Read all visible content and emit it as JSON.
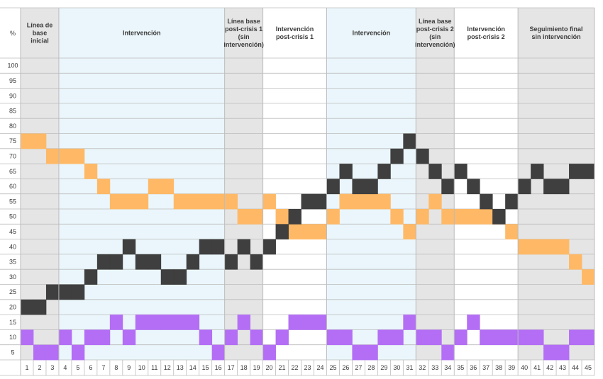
{
  "chart_data": {
    "type": "step",
    "y_unit_label": "%",
    "x": [
      1,
      2,
      3,
      4,
      5,
      6,
      7,
      8,
      9,
      10,
      11,
      12,
      13,
      14,
      15,
      16,
      17,
      18,
      19,
      20,
      21,
      22,
      23,
      24,
      25,
      26,
      27,
      28,
      29,
      30,
      31,
      32,
      33,
      34,
      35,
      36,
      37,
      38,
      39,
      40,
      41,
      42,
      43,
      44,
      45
    ],
    "x_tick_labels": [
      "1",
      "2",
      "3",
      "4",
      "5",
      "6",
      "7",
      "8",
      "9",
      "10",
      "11",
      "12",
      "13",
      "14",
      "15",
      "16",
      "17",
      "18",
      "19",
      "20",
      "21",
      "22",
      "23",
      "24",
      "25",
      "26",
      "27",
      "28",
      "29",
      "30",
      "31",
      "32",
      "33",
      "34",
      "35",
      "36",
      "37",
      "38",
      "39",
      "40",
      "41",
      "42",
      "43",
      "44",
      "45"
    ],
    "y_tick_labels": [
      "5",
      "10",
      "15",
      "20",
      "25",
      "30",
      "35",
      "40",
      "45",
      "50",
      "55",
      "60",
      "65",
      "70",
      "75",
      "80",
      "85",
      "90",
      "95",
      "100"
    ],
    "ylim": [
      0,
      100
    ],
    "y_step": 5,
    "phases": [
      {
        "label": "Línea de base inicial",
        "lines": [
          "Línea de",
          "base",
          "inicial"
        ],
        "start": 1,
        "end": 3,
        "shade": "gray"
      },
      {
        "label": "Intervención",
        "lines": [
          "Intervención"
        ],
        "start": 4,
        "end": 16,
        "shade": "blue"
      },
      {
        "label": "Línea base post-crisis 1 (sin intervención)",
        "lines": [
          "Línea base",
          "post-crisis 1",
          "(sin",
          "intervención)"
        ],
        "start": 17,
        "end": 19,
        "shade": "gray"
      },
      {
        "label": "Intervención post-crisis 1",
        "lines": [
          "Intervención",
          "post-crisis 1"
        ],
        "start": 20,
        "end": 24,
        "shade": "white"
      },
      {
        "label": "Intervención",
        "lines": [
          "Intervención"
        ],
        "start": 25,
        "end": 31,
        "shade": "blue"
      },
      {
        "label": "Línea base post-crisis 2 (sin intervención)",
        "lines": [
          "Línea base",
          "post-crisis 2",
          "(sin",
          "intervención)"
        ],
        "start": 32,
        "end": 34,
        "shade": "gray"
      },
      {
        "label": "Intervención post-crisis 2",
        "lines": [
          "Intervención",
          "post-crisis 2"
        ],
        "start": 35,
        "end": 39,
        "shade": "white"
      },
      {
        "label": "Seguimiento final sin intervención",
        "lines": [
          "Seguimiento final",
          "sin intervención"
        ],
        "start": 40,
        "end": 45,
        "shade": "gray"
      }
    ],
    "series": [
      {
        "color": "#ffb966",
        "values": [
          75,
          75,
          70,
          70,
          70,
          65,
          60,
          55,
          55,
          55,
          60,
          60,
          55,
          55,
          55,
          55,
          55,
          50,
          50,
          55,
          50,
          45,
          45,
          45,
          50,
          55,
          55,
          55,
          55,
          50,
          45,
          50,
          55,
          50,
          50,
          50,
          50,
          50,
          45,
          40,
          40,
          40,
          40,
          35,
          30
        ]
      },
      {
        "color": "#3f3f3f",
        "values": [
          20,
          20,
          25,
          25,
          25,
          30,
          35,
          35,
          40,
          35,
          35,
          30,
          30,
          35,
          40,
          40,
          35,
          40,
          35,
          40,
          45,
          50,
          55,
          55,
          60,
          65,
          60,
          60,
          65,
          70,
          75,
          70,
          65,
          60,
          65,
          60,
          55,
          50,
          55,
          60,
          65,
          60,
          60,
          65,
          65
        ]
      },
      {
        "color": "#b36ef5",
        "values": [
          10,
          5,
          5,
          10,
          5,
          10,
          10,
          15,
          10,
          15,
          15,
          15,
          15,
          15,
          10,
          5,
          10,
          15,
          10,
          5,
          10,
          15,
          15,
          15,
          10,
          10,
          5,
          5,
          10,
          10,
          15,
          10,
          10,
          5,
          10,
          15,
          10,
          10,
          10,
          10,
          10,
          5,
          5,
          10,
          10
        ]
      }
    ],
    "colors": {
      "gray_phase": "#e5e5e5",
      "blue_phase": "#eaf6fb",
      "grid": "#bcbcbc"
    }
  }
}
